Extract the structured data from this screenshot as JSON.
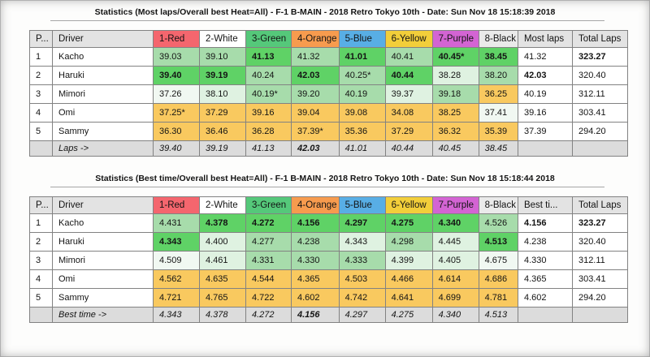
{
  "colors": {
    "red": "#F4666E",
    "white": "#FFFFFF",
    "green": "#55C87A",
    "orange": "#F79B4E",
    "blue": "#58AEE5",
    "yellow": "#F2CE3A",
    "purple": "#D364D3",
    "graycol": "#EAEAEA",
    "hdr": "#E3E3E3",
    "g1": "#5FD266",
    "g2": "#A7DCAB",
    "g3": "#DFF2E1",
    "g4": "#F1F8F2",
    "am": "#F9C95F",
    "footer": "#DCDCDC"
  },
  "tables": [
    {
      "title": "Statistics (Most laps/Overall best Heat=All) - F-1 B-MAIN - 2018 Retro Tokyo 10th - Date: Sun Nov 18 15:18:39 2018",
      "columns": [
        {
          "key": "position",
          "label": "P...",
          "color": "hdr"
        },
        {
          "key": "driver",
          "label": "Driver",
          "color": "hdr"
        },
        {
          "key": "1-red",
          "label": "1-Red",
          "color": "red"
        },
        {
          "key": "2-white",
          "label": "2-White",
          "color": "white"
        },
        {
          "key": "3-green",
          "label": "3-Green",
          "color": "green"
        },
        {
          "key": "4-orange",
          "label": "4-Orange",
          "color": "orange"
        },
        {
          "key": "5-blue",
          "label": "5-Blue",
          "color": "blue"
        },
        {
          "key": "6-yellow",
          "label": "6-Yellow",
          "color": "yellow"
        },
        {
          "key": "7-purple",
          "label": "7-Purple",
          "color": "purple"
        },
        {
          "key": "8-black",
          "label": "8-Black",
          "color": "graycol"
        },
        {
          "key": "most-laps",
          "label": "Most laps",
          "color": "hdr"
        },
        {
          "key": "total-laps",
          "label": "Total Laps",
          "color": "hdr",
          "bold": true
        }
      ],
      "rows": [
        {
          "pos": "1",
          "driver": "Kacho",
          "heats": [
            {
              "v": "39.03",
              "s": "g2"
            },
            {
              "v": "39.10",
              "s": "g2"
            },
            {
              "v": "41.13",
              "s": "g1",
              "b": true
            },
            {
              "v": "41.32",
              "s": "g2"
            },
            {
              "v": "41.01",
              "s": "g1",
              "b": true
            },
            {
              "v": "40.41",
              "s": "g2"
            },
            {
              "v": "40.45*",
              "s": "g1",
              "b": true
            },
            {
              "v": "38.45",
              "s": "g1",
              "b": true
            }
          ],
          "best": {
            "v": "41.32"
          },
          "total": {
            "v": "323.27",
            "b": true
          }
        },
        {
          "pos": "2",
          "driver": "Haruki",
          "heats": [
            {
              "v": "39.40",
              "s": "g1",
              "b": true
            },
            {
              "v": "39.19",
              "s": "g1",
              "b": true
            },
            {
              "v": "40.24",
              "s": "g2"
            },
            {
              "v": "42.03",
              "s": "g1",
              "b": true
            },
            {
              "v": "40.25*",
              "s": "g2"
            },
            {
              "v": "40.44",
              "s": "g1",
              "b": true
            },
            {
              "v": "38.28",
              "s": "g3"
            },
            {
              "v": "38.20",
              "s": "g2"
            }
          ],
          "best": {
            "v": "42.03",
            "b": true
          },
          "total": {
            "v": "320.40"
          }
        },
        {
          "pos": "3",
          "driver": "Mimori",
          "heats": [
            {
              "v": "37.26",
              "s": "g4"
            },
            {
              "v": "38.10",
              "s": "g3"
            },
            {
              "v": "40.19*",
              "s": "g2"
            },
            {
              "v": "39.20",
              "s": "g2"
            },
            {
              "v": "40.19",
              "s": "g2"
            },
            {
              "v": "39.37",
              "s": "g3"
            },
            {
              "v": "39.18",
              "s": "g2"
            },
            {
              "v": "36.25",
              "s": "am"
            }
          ],
          "best": {
            "v": "40.19"
          },
          "total": {
            "v": "312.11"
          }
        },
        {
          "pos": "4",
          "driver": "Omi",
          "heats": [
            {
              "v": "37.25*",
              "s": "am"
            },
            {
              "v": "37.29",
              "s": "am"
            },
            {
              "v": "39.16",
              "s": "am"
            },
            {
              "v": "39.04",
              "s": "am"
            },
            {
              "v": "39.08",
              "s": "am"
            },
            {
              "v": "34.08",
              "s": "am"
            },
            {
              "v": "38.25",
              "s": "am"
            },
            {
              "v": "37.41",
              "s": "g4"
            }
          ],
          "best": {
            "v": "39.16"
          },
          "total": {
            "v": "303.41"
          }
        },
        {
          "pos": "5",
          "driver": "Sammy",
          "heats": [
            {
              "v": "36.30",
              "s": "am"
            },
            {
              "v": "36.46",
              "s": "am"
            },
            {
              "v": "36.28",
              "s": "am"
            },
            {
              "v": "37.39*",
              "s": "am"
            },
            {
              "v": "35.36",
              "s": "am"
            },
            {
              "v": "37.29",
              "s": "am"
            },
            {
              "v": "36.32",
              "s": "am"
            },
            {
              "v": "35.39",
              "s": "am"
            }
          ],
          "best": {
            "v": "37.39"
          },
          "total": {
            "v": "294.20"
          }
        }
      ],
      "footer": {
        "label": "Laps ->",
        "cells": [
          {
            "v": "39.40"
          },
          {
            "v": "39.19"
          },
          {
            "v": "41.13"
          },
          {
            "v": "42.03",
            "b": true
          },
          {
            "v": "41.01"
          },
          {
            "v": "40.44"
          },
          {
            "v": "40.45"
          },
          {
            "v": "38.45"
          }
        ]
      }
    },
    {
      "title": "Statistics (Best time/Overall best Heat=All) - F-1 B-MAIN - 2018 Retro Tokyo 10th - Date: Sun Nov 18 15:18:44 2018",
      "columns": [
        {
          "key": "position",
          "label": "P...",
          "color": "hdr"
        },
        {
          "key": "driver",
          "label": "Driver",
          "color": "hdr"
        },
        {
          "key": "1-red",
          "label": "1-Red",
          "color": "red"
        },
        {
          "key": "2-white",
          "label": "2-White",
          "color": "white"
        },
        {
          "key": "3-green",
          "label": "3-Green",
          "color": "green"
        },
        {
          "key": "4-orange",
          "label": "4-Orange",
          "color": "orange"
        },
        {
          "key": "5-blue",
          "label": "5-Blue",
          "color": "blue"
        },
        {
          "key": "6-yellow",
          "label": "6-Yellow",
          "color": "yellow"
        },
        {
          "key": "7-purple",
          "label": "7-Purple",
          "color": "purple"
        },
        {
          "key": "8-black",
          "label": "8-Black",
          "color": "graycol"
        },
        {
          "key": "best-time",
          "label": "Best ti...",
          "color": "hdr",
          "bold": true
        },
        {
          "key": "total-laps",
          "label": "Total Laps",
          "color": "hdr"
        }
      ],
      "rows": [
        {
          "pos": "1",
          "driver": "Kacho",
          "heats": [
            {
              "v": "4.431",
              "s": "g2"
            },
            {
              "v": "4.378",
              "s": "g1",
              "b": true
            },
            {
              "v": "4.272",
              "s": "g1",
              "b": true
            },
            {
              "v": "4.156",
              "s": "g1",
              "b": true
            },
            {
              "v": "4.297",
              "s": "g1",
              "b": true
            },
            {
              "v": "4.275",
              "s": "g1",
              "b": true
            },
            {
              "v": "4.340",
              "s": "g1",
              "b": true
            },
            {
              "v": "4.526",
              "s": "g2"
            }
          ],
          "best": {
            "v": "4.156",
            "b": true
          },
          "total": {
            "v": "323.27",
            "b": true
          }
        },
        {
          "pos": "2",
          "driver": "Haruki",
          "heats": [
            {
              "v": "4.343",
              "s": "g1",
              "b": true
            },
            {
              "v": "4.400",
              "s": "g3"
            },
            {
              "v": "4.277",
              "s": "g2"
            },
            {
              "v": "4.238",
              "s": "g2"
            },
            {
              "v": "4.343",
              "s": "g3"
            },
            {
              "v": "4.298",
              "s": "g2"
            },
            {
              "v": "4.445",
              "s": "g3"
            },
            {
              "v": "4.513",
              "s": "g1",
              "b": true
            }
          ],
          "best": {
            "v": "4.238"
          },
          "total": {
            "v": "320.40"
          }
        },
        {
          "pos": "3",
          "driver": "Mimori",
          "heats": [
            {
              "v": "4.509",
              "s": "g4"
            },
            {
              "v": "4.461",
              "s": "g3"
            },
            {
              "v": "4.331",
              "s": "g2"
            },
            {
              "v": "4.330",
              "s": "g2"
            },
            {
              "v": "4.333",
              "s": "g2"
            },
            {
              "v": "4.399",
              "s": "g3"
            },
            {
              "v": "4.405",
              "s": "g3"
            },
            {
              "v": "4.675",
              "s": "g4"
            }
          ],
          "best": {
            "v": "4.330"
          },
          "total": {
            "v": "312.11"
          }
        },
        {
          "pos": "4",
          "driver": "Omi",
          "heats": [
            {
              "v": "4.562",
              "s": "am"
            },
            {
              "v": "4.635",
              "s": "am"
            },
            {
              "v": "4.544",
              "s": "am"
            },
            {
              "v": "4.365",
              "s": "am"
            },
            {
              "v": "4.503",
              "s": "am"
            },
            {
              "v": "4.466",
              "s": "am"
            },
            {
              "v": "4.614",
              "s": "am"
            },
            {
              "v": "4.686",
              "s": "am"
            }
          ],
          "best": {
            "v": "4.365"
          },
          "total": {
            "v": "303.41"
          }
        },
        {
          "pos": "5",
          "driver": "Sammy",
          "heats": [
            {
              "v": "4.721",
              "s": "am"
            },
            {
              "v": "4.765",
              "s": "am"
            },
            {
              "v": "4.722",
              "s": "am"
            },
            {
              "v": "4.602",
              "s": "am"
            },
            {
              "v": "4.742",
              "s": "am"
            },
            {
              "v": "4.641",
              "s": "am"
            },
            {
              "v": "4.699",
              "s": "am"
            },
            {
              "v": "4.781",
              "s": "am"
            }
          ],
          "best": {
            "v": "4.602"
          },
          "total": {
            "v": "294.20"
          }
        }
      ],
      "footer": {
        "label": "Best time ->",
        "cells": [
          {
            "v": "4.343"
          },
          {
            "v": "4.378"
          },
          {
            "v": "4.272"
          },
          {
            "v": "4.156",
            "b": true
          },
          {
            "v": "4.297"
          },
          {
            "v": "4.275"
          },
          {
            "v": "4.340"
          },
          {
            "v": "4.513"
          }
        ]
      }
    }
  ]
}
